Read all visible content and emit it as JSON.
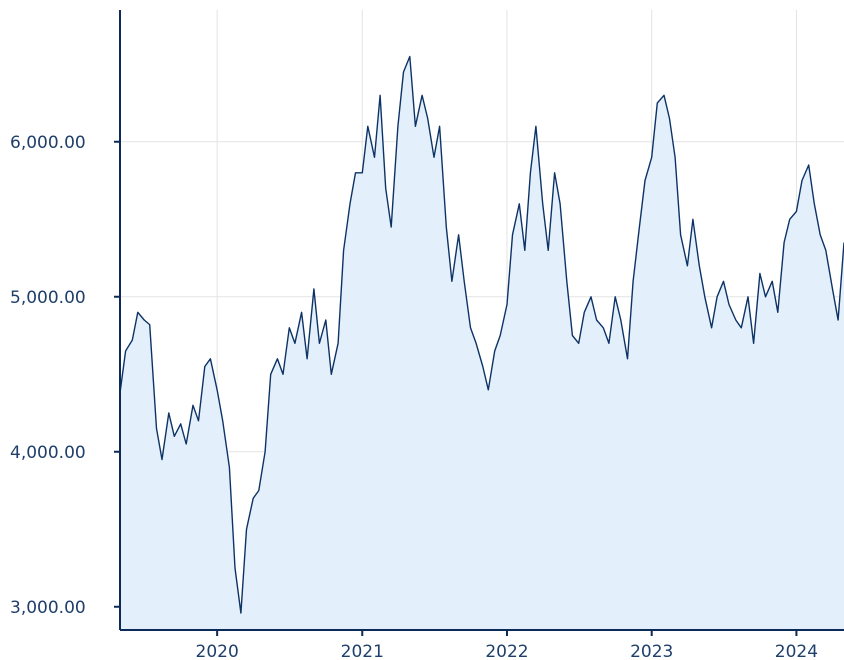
{
  "chart_data": {
    "type": "area",
    "title": "",
    "xlabel": "",
    "ylabel": "",
    "x_range": [
      "2019-05-01",
      "2024-04-30"
    ],
    "ylim": [
      2850,
      6850
    ],
    "y_ticks": [
      {
        "value": 3000,
        "label": "3,000.00"
      },
      {
        "value": 4000,
        "label": "4,000.00"
      },
      {
        "value": 5000,
        "label": "5,000.00"
      },
      {
        "value": 6000,
        "label": "6,000.00"
      }
    ],
    "x_ticks": [
      {
        "value": "2020-01-01",
        "label": "2020"
      },
      {
        "value": "2021-01-01",
        "label": "2021"
      },
      {
        "value": "2022-01-01",
        "label": "2022"
      },
      {
        "value": "2023-01-01",
        "label": "2023"
      },
      {
        "value": "2024-01-01",
        "label": "2024"
      }
    ],
    "grid": true,
    "legend": "none",
    "colors": {
      "line": "#0d3366",
      "fill": "#e3effa",
      "axis": "#0b2a57",
      "grid": "#e3e3e3",
      "text": "#1f3f6a"
    },
    "series": [
      {
        "x": [
          "2019-05-01",
          "2019-05-15",
          "2019-06-01",
          "2019-06-15",
          "2019-07-01",
          "2019-07-15",
          "2019-08-01",
          "2019-08-15",
          "2019-09-01",
          "2019-09-15",
          "2019-10-01",
          "2019-10-15",
          "2019-11-01",
          "2019-11-15",
          "2019-12-01",
          "2019-12-15",
          "2020-01-01",
          "2020-01-15",
          "2020-02-01",
          "2020-02-15",
          "2020-03-01",
          "2020-03-15",
          "2020-04-01",
          "2020-04-15",
          "2020-05-01",
          "2020-05-15",
          "2020-06-01",
          "2020-06-15",
          "2020-07-01",
          "2020-07-15",
          "2020-08-01",
          "2020-08-15",
          "2020-09-01",
          "2020-09-15",
          "2020-10-01",
          "2020-10-15",
          "2020-11-01",
          "2020-11-15",
          "2020-12-01",
          "2020-12-15",
          "2021-01-01",
          "2021-01-15",
          "2021-02-01",
          "2021-02-15",
          "2021-03-01",
          "2021-03-15",
          "2021-04-01",
          "2021-04-15",
          "2021-05-01",
          "2021-05-15",
          "2021-06-01",
          "2021-06-15",
          "2021-07-01",
          "2021-07-15",
          "2021-08-01",
          "2021-08-15",
          "2021-09-01",
          "2021-09-15",
          "2021-10-01",
          "2021-10-15",
          "2021-11-01",
          "2021-11-15",
          "2021-12-01",
          "2021-12-15",
          "2022-01-01",
          "2022-01-15",
          "2022-02-01",
          "2022-02-15",
          "2022-03-01",
          "2022-03-15",
          "2022-04-01",
          "2022-04-15",
          "2022-05-01",
          "2022-05-15",
          "2022-06-01",
          "2022-06-15",
          "2022-07-01",
          "2022-07-15",
          "2022-08-01",
          "2022-08-15",
          "2022-09-01",
          "2022-09-15",
          "2022-10-01",
          "2022-10-15",
          "2022-11-01",
          "2022-11-15",
          "2022-12-01",
          "2022-12-15",
          "2023-01-01",
          "2023-01-15",
          "2023-02-01",
          "2023-02-15",
          "2023-03-01",
          "2023-03-15",
          "2023-04-01",
          "2023-04-15",
          "2023-05-01",
          "2023-05-15",
          "2023-06-01",
          "2023-06-15",
          "2023-07-01",
          "2023-07-15",
          "2023-08-01",
          "2023-08-15",
          "2023-09-01",
          "2023-09-15",
          "2023-10-01",
          "2023-10-15",
          "2023-11-01",
          "2023-11-15",
          "2023-12-01",
          "2023-12-15",
          "2024-01-01",
          "2024-01-15",
          "2024-02-01",
          "2024-02-15",
          "2024-03-01",
          "2024-03-15",
          "2024-04-01",
          "2024-04-15",
          "2024-04-30"
        ],
        "y": [
          4380,
          4650,
          4720,
          4900,
          4850,
          4820,
          4150,
          3950,
          4250,
          4100,
          4180,
          4050,
          4300,
          4200,
          4550,
          4600,
          4400,
          4200,
          3900,
          3250,
          2960,
          3500,
          3700,
          3750,
          4000,
          4500,
          4600,
          4500,
          4800,
          4700,
          4900,
          4600,
          5050,
          4700,
          4850,
          4500,
          4700,
          5300,
          5600,
          5800,
          5800,
          6100,
          5900,
          6300,
          5700,
          5450,
          6100,
          6450,
          6550,
          6100,
          6300,
          6150,
          5900,
          6100,
          5450,
          5100,
          5400,
          5100,
          4800,
          4700,
          4550,
          4400,
          4650,
          4750,
          4950,
          5400,
          5600,
          5300,
          5800,
          6100,
          5600,
          5300,
          5800,
          5600,
          5100,
          4750,
          4700,
          4900,
          5000,
          4850,
          4800,
          4700,
          5000,
          4850,
          4600,
          5100,
          5450,
          5750,
          5900,
          6250,
          6300,
          6150,
          5900,
          5400,
          5200,
          5500,
          5200,
          5000,
          4800,
          5000,
          5100,
          4950,
          4850,
          4800,
          5000,
          4700,
          5150,
          5000,
          5100,
          4900,
          5350,
          5500,
          5550,
          5750,
          5850,
          5600,
          5400,
          5300,
          5050,
          4850,
          5350
        ]
      }
    ]
  }
}
